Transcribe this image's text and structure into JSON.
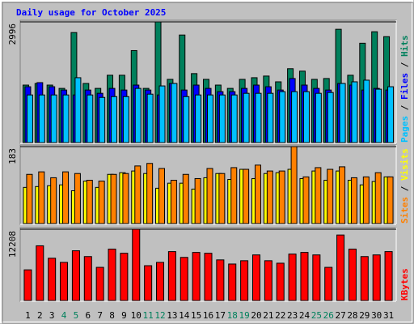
{
  "chart_data": [
    {
      "type": "bar",
      "title": "Daily usage for October 2025",
      "legend_separator": " / ",
      "ylim": [
        0,
        2996
      ],
      "yticks": [
        2996
      ],
      "grid": true,
      "series": [
        {
          "name": "Hits",
          "color": "#00805c",
          "values": [
            1427,
            1467,
            1427,
            1345,
            2731,
            1467,
            1345,
            1671,
            1671,
            2283,
            1345,
            2996,
            1569,
            2670,
            1712,
            1569,
            1427,
            1345,
            1569,
            1610,
            1651,
            1508,
            1834,
            1773,
            1569,
            1590,
            2812,
            1671,
            2466,
            2751,
            2629
          ]
        },
        {
          "name": "Files",
          "color": "#0000ff",
          "values": [
            1386,
            1488,
            1386,
            1304,
            1182,
            1304,
            1223,
            1345,
            1304,
            1427,
            1304,
            1182,
            1467,
            1304,
            1427,
            1345,
            1264,
            1264,
            1345,
            1427,
            1386,
            1304,
            1590,
            1427,
            1345,
            1304,
            1467,
            1427,
            1304,
            1345,
            1304
          ]
        },
        {
          "name": "Pages",
          "color": "#00c0ff",
          "values": [
            1182,
            1182,
            1182,
            1182,
            1610,
            1182,
            1121,
            1141,
            1141,
            1345,
            1202,
            1406,
            1467,
            1141,
            1182,
            1182,
            1182,
            1182,
            1223,
            1223,
            1223,
            1264,
            1264,
            1264,
            1223,
            1243,
            1467,
            1508,
            1549,
            1325,
            1386
          ]
        }
      ]
    },
    {
      "type": "bar",
      "legend_separator": " / ",
      "ylim": [
        0,
        183
      ],
      "yticks": [
        183
      ],
      "grid": true,
      "series": [
        {
          "name": "Visits",
          "color": "#ffff00",
          "values": [
            86,
            88,
            90,
            92,
            78,
            101,
            86,
            117,
            121,
            125,
            119,
            84,
            96,
            96,
            82,
            109,
            119,
            105,
            129,
            107,
            119,
            121,
            129,
            107,
            125,
            103,
            125,
            103,
            92,
            100,
            111
          ]
        },
        {
          "name": "Sites",
          "color": "#ff8000",
          "values": [
            117,
            123,
            109,
            123,
            119,
            103,
            101,
            117,
            119,
            137,
            143,
            131,
            103,
            117,
            107,
            131,
            119,
            133,
            129,
            139,
            125,
            125,
            183,
            111,
            133,
            129,
            135,
            109,
            111,
            121,
            111
          ]
        }
      ]
    },
    {
      "type": "bar",
      "ylim": [
        0,
        12208
      ],
      "yticks": [
        12208
      ],
      "grid": true,
      "categories": [
        "1",
        "2",
        "3",
        "4",
        "5",
        "6",
        "7",
        "8",
        "9",
        "10",
        "11",
        "12",
        "13",
        "14",
        "15",
        "16",
        "17",
        "18",
        "19",
        "20",
        "21",
        "22",
        "23",
        "24",
        "25",
        "26",
        "27",
        "28",
        "29",
        "30",
        "31"
      ],
      "category_colors": [
        "#000000",
        "#000000",
        "#000000",
        "#00805c",
        "#00805c",
        "#000000",
        "#000000",
        "#000000",
        "#000000",
        "#000000",
        "#00805c",
        "#00805c",
        "#000000",
        "#000000",
        "#000000",
        "#000000",
        "#000000",
        "#00805c",
        "#00805c",
        "#000000",
        "#000000",
        "#000000",
        "#000000",
        "#000000",
        "#00805c",
        "#00805c",
        "#000000",
        "#000000",
        "#000000",
        "#000000",
        "#000000"
      ],
      "series": [
        {
          "name": "KBytes",
          "color": "#ff0000",
          "values": [
            5254,
            9372,
            7242,
            6532,
            8520,
            7526,
            5680,
            8804,
            8094,
            12208,
            5964,
            6532,
            8378,
            7384,
            8236,
            8094,
            6958,
            6248,
            6816,
            7810,
            6816,
            6390,
            7952,
            8236,
            7810,
            5680,
            11218,
            8804,
            7526,
            7810,
            8378
          ]
        }
      ]
    }
  ]
}
